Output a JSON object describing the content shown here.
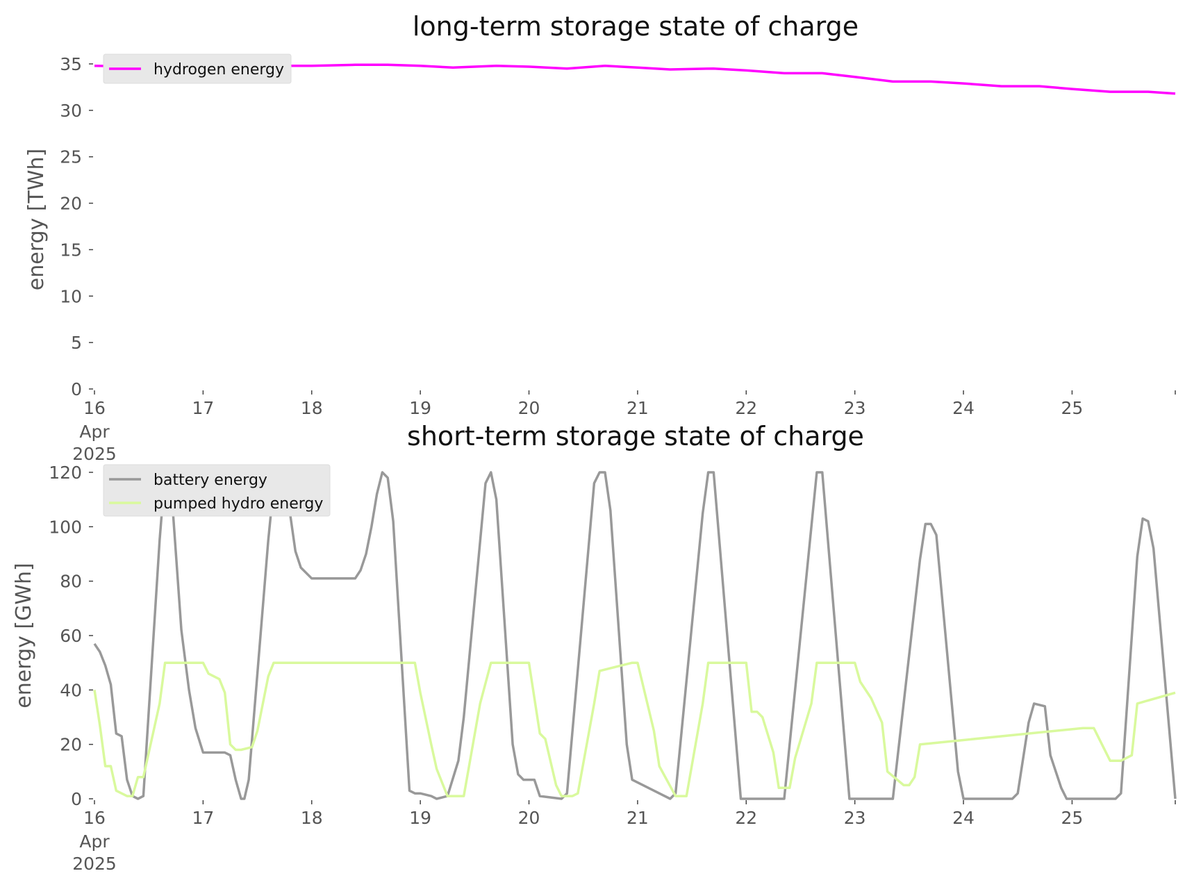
{
  "chart_data": [
    {
      "type": "line",
      "title": "long-term storage state of charge",
      "ylabel": "energy [TWh]",
      "xlabel": "",
      "ylim": [
        0,
        35
      ],
      "yticks": [
        "0",
        "5",
        "10",
        "15",
        "20",
        "25",
        "30",
        "35"
      ],
      "xticks": [
        "16",
        "17",
        "18",
        "19",
        "20",
        "21",
        "22",
        "23",
        "24",
        "25"
      ],
      "xtick_first_extra": [
        "Apr",
        "2025"
      ],
      "xlim_days": [
        16,
        25.95
      ],
      "grid": false,
      "legend_position": "top-left",
      "series": [
        {
          "name": "hydrogen energy",
          "color": "#ff00ff",
          "x": [
            16,
            16.5,
            17,
            17.5,
            18,
            18.4,
            18.7,
            19,
            19.3,
            19.7,
            20,
            20.35,
            20.7,
            21,
            21.3,
            21.7,
            22,
            22.35,
            22.7,
            23,
            23.35,
            23.7,
            24,
            24.35,
            24.7,
            25,
            25.35,
            25.7,
            25.95
          ],
          "y": [
            34.8,
            34.7,
            34.8,
            34.8,
            34.8,
            34.9,
            34.9,
            34.8,
            34.6,
            34.8,
            34.7,
            34.5,
            34.8,
            34.6,
            34.4,
            34.5,
            34.3,
            34.0,
            34.0,
            33.6,
            33.1,
            33.1,
            32.9,
            32.6,
            32.6,
            32.3,
            32.0,
            32.0,
            31.8
          ]
        }
      ]
    },
    {
      "type": "line",
      "title": "short-term storage state of charge",
      "ylabel": "energy [GWh]",
      "xlabel": "",
      "ylim": [
        0,
        120
      ],
      "yticks": [
        "0",
        "20",
        "40",
        "60",
        "80",
        "100",
        "120"
      ],
      "xticks": [
        "16",
        "17",
        "18",
        "19",
        "20",
        "21",
        "22",
        "23",
        "24",
        "25"
      ],
      "xtick_first_extra": [
        "Apr",
        "2025"
      ],
      "xlim_days": [
        16,
        25.95
      ],
      "grid": false,
      "legend_position": "top-left",
      "series": [
        {
          "name": "battery energy",
          "color": "#999999",
          "x": [
            16,
            16.05,
            16.1,
            16.15,
            16.2,
            16.25,
            16.3,
            16.35,
            16.4,
            16.45,
            16.6,
            16.65,
            16.7,
            16.8,
            16.87,
            16.93,
            17,
            17.1,
            17.2,
            17.25,
            17.3,
            17.35,
            17.38,
            17.42,
            17.6,
            17.65,
            17.7,
            17.8,
            17.85,
            17.9,
            18.0,
            18.3,
            18.4,
            18.45,
            18.5,
            18.55,
            18.6,
            18.65,
            18.7,
            18.75,
            18.9,
            18.95,
            19,
            19.1,
            19.15,
            19.25,
            19.35,
            19.4,
            19.6,
            19.65,
            19.7,
            19.85,
            19.9,
            19.95,
            20.05,
            20.1,
            20.3,
            20.35,
            20.6,
            20.65,
            20.7,
            20.75,
            20.9,
            20.95,
            21.3,
            21.35,
            21.6,
            21.65,
            21.7,
            21.95,
            22.35,
            22.6,
            22.65,
            22.7,
            22.95,
            23.35,
            23.6,
            23.65,
            23.7,
            23.75,
            23.95,
            24.0,
            24.45,
            24.5,
            24.6,
            24.65,
            24.75,
            24.8,
            24.85,
            24.9,
            24.95,
            25.4,
            25.45,
            25.6,
            25.65,
            25.7,
            25.75,
            25.95
          ],
          "y": [
            57,
            54,
            49,
            42,
            24,
            23,
            7,
            1,
            0,
            1,
            95,
            120,
            118,
            62,
            40,
            26,
            17,
            17,
            17,
            16,
            7,
            0,
            0,
            7,
            95,
            115,
            120,
            105,
            91,
            85,
            81,
            81,
            81,
            84,
            90,
            100,
            112,
            120,
            118,
            102,
            3,
            2,
            2,
            1,
            0,
            1,
            14,
            30,
            116,
            120,
            110,
            20,
            9,
            7,
            7,
            1,
            0,
            2,
            116,
            120,
            120,
            106,
            20,
            7,
            0,
            2,
            105,
            120,
            120,
            0,
            0,
            100,
            120,
            120,
            0,
            0,
            88,
            101,
            101,
            97,
            10,
            0,
            0,
            2,
            28,
            35,
            34,
            16,
            10,
            4,
            0,
            0,
            2,
            89,
            103,
            102,
            92,
            0
          ]
        },
        {
          "name": "pumped hydro energy",
          "color": "#d9f99d",
          "x": [
            16,
            16.05,
            16.1,
            16.15,
            16.2,
            16.25,
            16.3,
            16.35,
            16.4,
            16.45,
            16.6,
            16.65,
            16.95,
            17.0,
            17.05,
            17.15,
            17.2,
            17.25,
            17.3,
            17.35,
            17.45,
            17.5,
            17.6,
            17.65,
            18.95,
            19.0,
            19.1,
            19.15,
            19.25,
            19.4,
            19.55,
            19.65,
            19.95,
            20.0,
            20.1,
            20.15,
            20.25,
            20.3,
            20.4,
            20.45,
            20.6,
            20.65,
            20.95,
            21.0,
            21.15,
            21.2,
            21.35,
            21.45,
            21.6,
            21.65,
            21.95,
            22.0,
            22.05,
            22.1,
            22.15,
            22.25,
            22.3,
            22.4,
            22.45,
            22.6,
            22.65,
            22.95,
            23.0,
            23.05,
            23.15,
            23.25,
            23.3,
            23.45,
            23.5,
            23.55,
            23.6,
            25.1,
            25.15,
            25.2,
            25.35,
            25.45,
            25.55,
            25.6,
            25.95
          ],
          "y": [
            40,
            27,
            12,
            12,
            3,
            2,
            1,
            1,
            8,
            8,
            35,
            50,
            50,
            50,
            46,
            44,
            39,
            20,
            18,
            18,
            19,
            25,
            45,
            50,
            50,
            39,
            20,
            11,
            1,
            1,
            35,
            50,
            50,
            50,
            24,
            22,
            5,
            1,
            1,
            2,
            35,
            47,
            50,
            50,
            25,
            12,
            1,
            1,
            35,
            50,
            50,
            50,
            32,
            32,
            30,
            17,
            4,
            4,
            15,
            35,
            50,
            50,
            50,
            43,
            37,
            28,
            10,
            5,
            5,
            8,
            20,
            26,
            26,
            26,
            14,
            14,
            16,
            35,
            39
          ]
        }
      ]
    }
  ]
}
